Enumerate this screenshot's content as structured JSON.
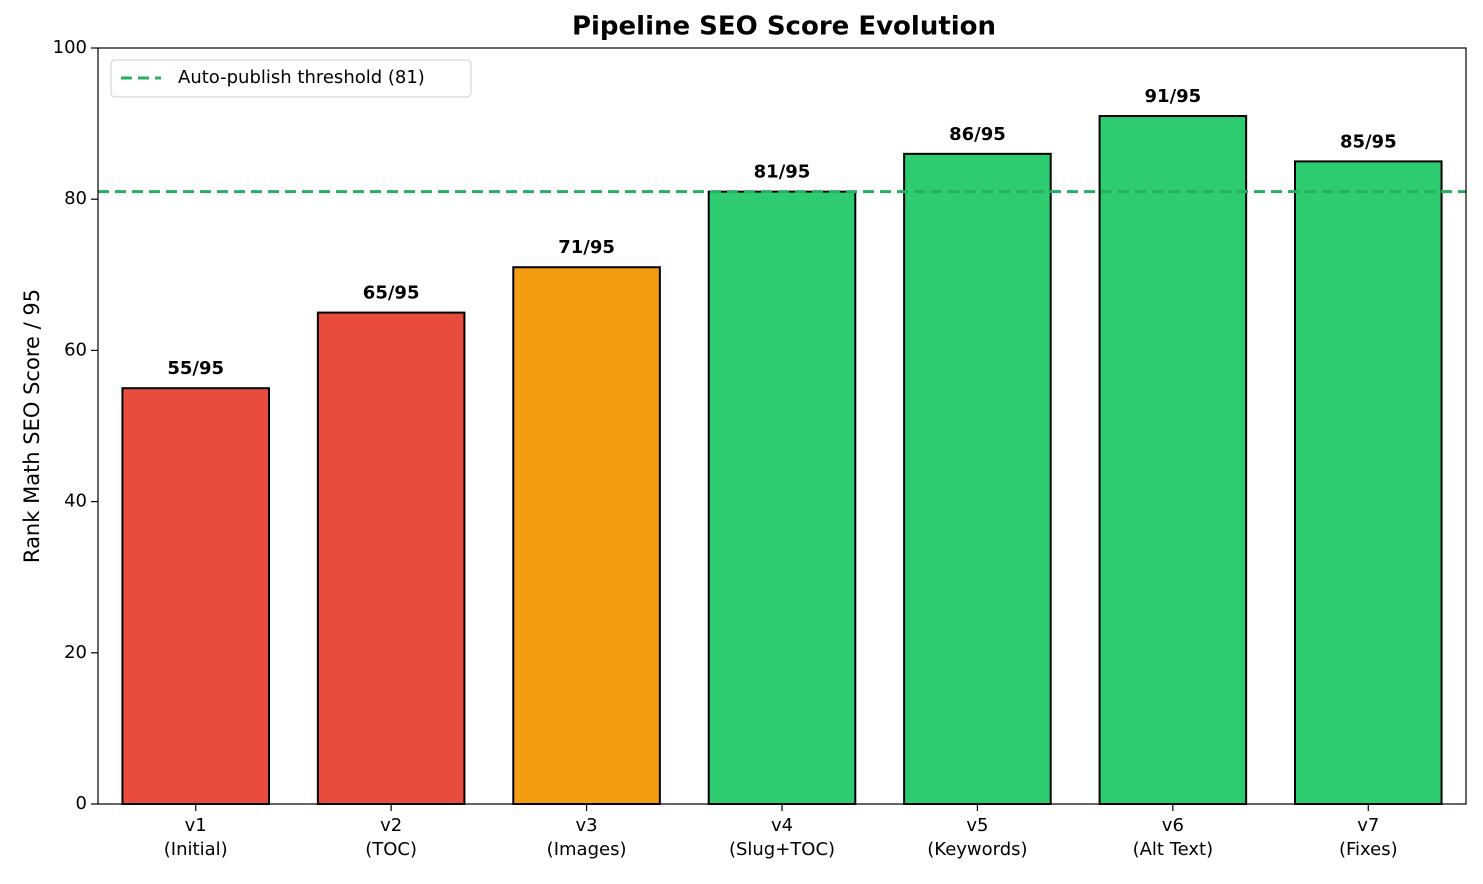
{
  "chart_data": {
    "type": "bar",
    "title": "Pipeline SEO Score Evolution",
    "ylabel": "Rank Math SEO Score / 95",
    "categories": [
      [
        "v1",
        "(Initial)"
      ],
      [
        "v2",
        "(TOC)"
      ],
      [
        "v3",
        "(Images)"
      ],
      [
        "v4",
        "(Slug+TOC)"
      ],
      [
        "v5",
        "(Keywords)"
      ],
      [
        "v6",
        "(Alt Text)"
      ],
      [
        "v7",
        "(Fixes)"
      ]
    ],
    "values": [
      55,
      65,
      71,
      81,
      86,
      91,
      85
    ],
    "value_labels": [
      "55/95",
      "65/95",
      "71/95",
      "81/95",
      "86/95",
      "91/95",
      "85/95"
    ],
    "colors": [
      "#e74c3c",
      "#e74c3c",
      "#f39c12",
      "#2ecc71",
      "#2ecc71",
      "#2ecc71",
      "#2ecc71"
    ],
    "threshold": {
      "value": 81,
      "label": "Auto-publish threshold (81)",
      "color": "#27ae60"
    },
    "ylim": [
      0,
      100
    ],
    "yticks": [
      0,
      20,
      40,
      60,
      80,
      100
    ],
    "legend": "upper left"
  }
}
